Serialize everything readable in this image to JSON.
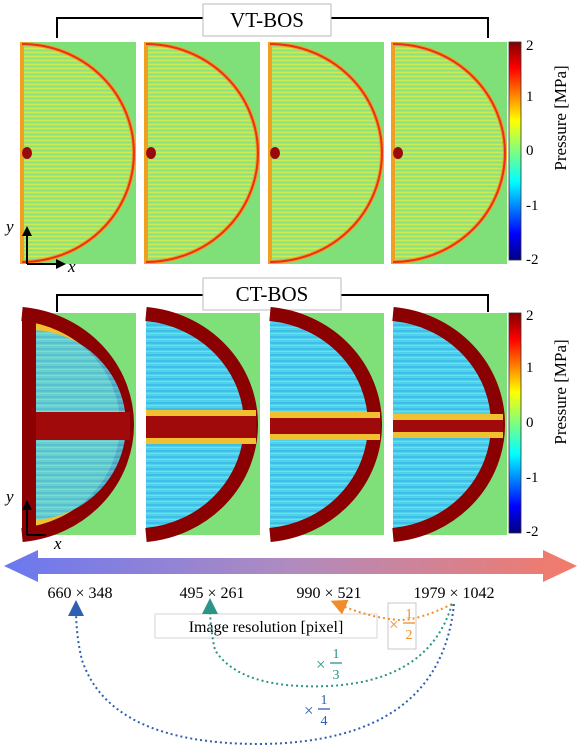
{
  "vt_section": {
    "title": "VT-BOS",
    "colorbar": {
      "label": "Pressure [MPa]",
      "ticks": [
        "2",
        "1",
        "0",
        "-1",
        "-2"
      ]
    },
    "axes": {
      "x": "x",
      "y": "y"
    }
  },
  "ct_section": {
    "title": "CT-BOS",
    "colorbar": {
      "label": "Pressure [MPa]",
      "ticks": [
        "2",
        "1",
        "0",
        "-1",
        "-2"
      ]
    },
    "axes": {
      "x": "x",
      "y": "y"
    }
  },
  "resolutions": {
    "r1": "660 × 348",
    "r2": "495 × 261",
    "r3": "990 × 521",
    "r4": "1979 × 1042"
  },
  "axis_title": "Image resolution [pixel]",
  "scale_factors": {
    "half": {
      "prefix": "×",
      "num": "1",
      "den": "2",
      "color": "#f08c2a"
    },
    "third": {
      "prefix": "×",
      "num": "1",
      "den": "3",
      "color": "#2a9486"
    },
    "quarter": {
      "prefix": "×",
      "num": "1",
      "den": "4",
      "color": "#2f5fb0"
    }
  },
  "colors": {
    "field_green": "#7fe07a",
    "arrow_left": "#6a78f0",
    "arrow_right": "#f47a68",
    "jet_red": "#8b0000"
  }
}
